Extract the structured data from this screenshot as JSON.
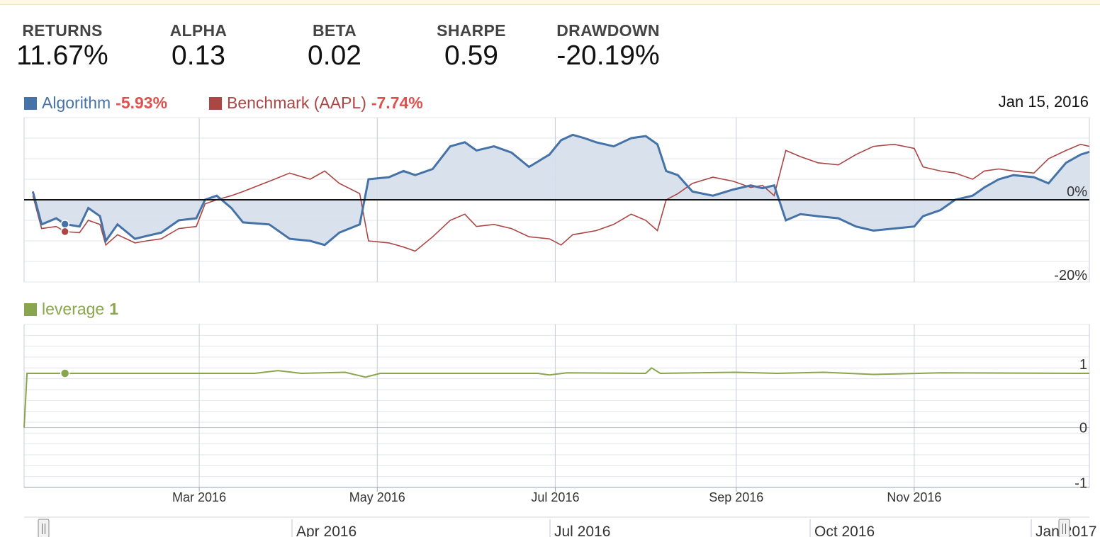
{
  "stats": [
    {
      "label": "RETURNS",
      "value": "11.67%"
    },
    {
      "label": "ALPHA",
      "value": "0.13"
    },
    {
      "label": "BETA",
      "value": "0.02"
    },
    {
      "label": "SHARPE",
      "value": "0.59"
    },
    {
      "label": "DRAWDOWN",
      "value": "-20.19%"
    }
  ],
  "legend": {
    "algorithm_name": "Algorithm",
    "algorithm_value": "-5.93%",
    "benchmark_name": "Benchmark (AAPL)",
    "benchmark_value": "-7.74%",
    "leverage_name": "leverage",
    "leverage_value": "1",
    "hover_date": "Jan 15, 2016"
  },
  "colors": {
    "algorithm": "#4572a7",
    "benchmark": "#aa4643",
    "leverage": "#89a54e",
    "negative_value": "#e0504d",
    "area_fill": "#d5deeb"
  },
  "navigator_labels": [
    "Apr 2016",
    "Jul 2016",
    "Oct 2016",
    "Jan 2017"
  ],
  "chart_data": [
    {
      "type": "line",
      "title": "",
      "x_ticks": [
        "Mar 2016",
        "May 2016",
        "Jul 2016",
        "Sep 2016",
        "Nov 2016"
      ],
      "y_ticks": [
        "0%",
        "-20%"
      ],
      "ylim": [
        -20,
        20
      ],
      "grid": true,
      "legend": "top-left",
      "series": [
        {
          "name": "Algorithm",
          "area": true,
          "points": [
            [
              "2016-01-04",
              2.0
            ],
            [
              "2016-01-07",
              -6.0
            ],
            [
              "2016-01-12",
              -4.5
            ],
            [
              "2016-01-15",
              -5.93
            ],
            [
              "2016-01-20",
              -6.5
            ],
            [
              "2016-01-23",
              -2.0
            ],
            [
              "2016-01-27",
              -4.0
            ],
            [
              "2016-01-29",
              -10.0
            ],
            [
              "2016-02-02",
              -6.0
            ],
            [
              "2016-02-08",
              -9.5
            ],
            [
              "2016-02-12",
              -8.8
            ],
            [
              "2016-02-17",
              -8.0
            ],
            [
              "2016-02-23",
              -5.0
            ],
            [
              "2016-02-29",
              -4.5
            ],
            [
              "2016-03-03",
              0.0
            ],
            [
              "2016-03-07",
              1.0
            ],
            [
              "2016-03-12",
              -2.0
            ],
            [
              "2016-03-16",
              -5.5
            ],
            [
              "2016-03-25",
              -6.0
            ],
            [
              "2016-04-01",
              -9.5
            ],
            [
              "2016-04-08",
              -10.0
            ],
            [
              "2016-04-13",
              -11.0
            ],
            [
              "2016-04-18",
              -8.0
            ],
            [
              "2016-04-25",
              -6.0
            ],
            [
              "2016-04-28",
              5.0
            ],
            [
              "2016-05-05",
              5.5
            ],
            [
              "2016-05-10",
              7.0
            ],
            [
              "2016-05-14",
              6.0
            ],
            [
              "2016-05-20",
              7.5
            ],
            [
              "2016-05-26",
              13.0
            ],
            [
              "2016-05-31",
              14.0
            ],
            [
              "2016-06-04",
              12.0
            ],
            [
              "2016-06-10",
              13.0
            ],
            [
              "2016-06-16",
              11.5
            ],
            [
              "2016-06-22",
              8.0
            ],
            [
              "2016-06-29",
              11.0
            ],
            [
              "2016-07-03",
              14.5
            ],
            [
              "2016-07-07",
              15.8
            ],
            [
              "2016-07-11",
              15.0
            ],
            [
              "2016-07-15",
              14.0
            ],
            [
              "2016-07-21",
              13.0
            ],
            [
              "2016-07-27",
              15.0
            ],
            [
              "2016-08-01",
              15.5
            ],
            [
              "2016-08-05",
              13.5
            ],
            [
              "2016-08-08",
              7.0
            ],
            [
              "2016-08-12",
              6.0
            ],
            [
              "2016-08-17",
              2.0
            ],
            [
              "2016-08-24",
              1.0
            ],
            [
              "2016-08-31",
              2.5
            ],
            [
              "2016-09-06",
              3.5
            ],
            [
              "2016-09-10",
              2.8
            ],
            [
              "2016-09-14",
              3.5
            ],
            [
              "2016-09-18",
              -5.0
            ],
            [
              "2016-09-23",
              -3.5
            ],
            [
              "2016-09-29",
              -4.0
            ],
            [
              "2016-10-06",
              -4.5
            ],
            [
              "2016-10-12",
              -6.5
            ],
            [
              "2016-10-18",
              -7.5
            ],
            [
              "2016-10-25",
              -7.0
            ],
            [
              "2016-11-01",
              -6.5
            ],
            [
              "2016-11-04",
              -4.0
            ],
            [
              "2016-11-10",
              -2.5
            ],
            [
              "2016-11-15",
              0.0
            ],
            [
              "2016-11-21",
              1.0
            ],
            [
              "2016-11-25",
              3.0
            ],
            [
              "2016-11-30",
              5.0
            ],
            [
              "2016-12-05",
              6.0
            ],
            [
              "2016-12-12",
              5.5
            ],
            [
              "2016-12-17",
              4.0
            ],
            [
              "2016-12-23",
              9.0
            ],
            [
              "2016-12-28",
              11.0
            ],
            [
              "2016-12-31",
              11.67
            ]
          ]
        },
        {
          "name": "Benchmark (AAPL)",
          "area": false,
          "points": [
            [
              "2016-01-04",
              1.0
            ],
            [
              "2016-01-07",
              -7.0
            ],
            [
              "2016-01-12",
              -6.5
            ],
            [
              "2016-01-15",
              -7.74
            ],
            [
              "2016-01-20",
              -8.0
            ],
            [
              "2016-01-23",
              -5.0
            ],
            [
              "2016-01-27",
              -6.0
            ],
            [
              "2016-01-29",
              -11.0
            ],
            [
              "2016-02-02",
              -8.5
            ],
            [
              "2016-02-08",
              -10.5
            ],
            [
              "2016-02-12",
              -10.0
            ],
            [
              "2016-02-17",
              -9.5
            ],
            [
              "2016-02-23",
              -7.0
            ],
            [
              "2016-02-29",
              -6.5
            ],
            [
              "2016-03-03",
              -1.0
            ],
            [
              "2016-03-07",
              0.0
            ],
            [
              "2016-03-12",
              1.0
            ],
            [
              "2016-03-16",
              2.0
            ],
            [
              "2016-03-25",
              4.5
            ],
            [
              "2016-04-01",
              6.5
            ],
            [
              "2016-04-08",
              5.0
            ],
            [
              "2016-04-13",
              7.0
            ],
            [
              "2016-04-18",
              4.0
            ],
            [
              "2016-04-25",
              1.5
            ],
            [
              "2016-04-28",
              -10.0
            ],
            [
              "2016-05-05",
              -10.5
            ],
            [
              "2016-05-10",
              -11.5
            ],
            [
              "2016-05-14",
              -12.5
            ],
            [
              "2016-05-20",
              -9.0
            ],
            [
              "2016-05-26",
              -5.0
            ],
            [
              "2016-05-31",
              -3.5
            ],
            [
              "2016-06-04",
              -6.5
            ],
            [
              "2016-06-10",
              -6.0
            ],
            [
              "2016-06-16",
              -7.0
            ],
            [
              "2016-06-22",
              -9.0
            ],
            [
              "2016-06-29",
              -9.5
            ],
            [
              "2016-07-03",
              -11.0
            ],
            [
              "2016-07-07",
              -8.5
            ],
            [
              "2016-07-11",
              -8.0
            ],
            [
              "2016-07-15",
              -7.5
            ],
            [
              "2016-07-21",
              -6.0
            ],
            [
              "2016-07-27",
              -3.5
            ],
            [
              "2016-08-01",
              -5.0
            ],
            [
              "2016-08-05",
              -7.5
            ],
            [
              "2016-08-08",
              0.0
            ],
            [
              "2016-08-12",
              1.5
            ],
            [
              "2016-08-17",
              4.0
            ],
            [
              "2016-08-24",
              5.5
            ],
            [
              "2016-08-31",
              4.5
            ],
            [
              "2016-09-06",
              3.0
            ],
            [
              "2016-09-10",
              3.5
            ],
            [
              "2016-09-14",
              1.0
            ],
            [
              "2016-09-18",
              12.0
            ],
            [
              "2016-09-23",
              10.5
            ],
            [
              "2016-09-29",
              9.0
            ],
            [
              "2016-10-06",
              8.5
            ],
            [
              "2016-10-12",
              11.0
            ],
            [
              "2016-10-18",
              13.0
            ],
            [
              "2016-10-25",
              13.5
            ],
            [
              "2016-11-01",
              12.5
            ],
            [
              "2016-11-04",
              8.0
            ],
            [
              "2016-11-10",
              7.0
            ],
            [
              "2016-11-15",
              6.5
            ],
            [
              "2016-11-21",
              5.0
            ],
            [
              "2016-11-25",
              7.0
            ],
            [
              "2016-11-30",
              7.5
            ],
            [
              "2016-12-05",
              7.0
            ],
            [
              "2016-12-12",
              6.5
            ],
            [
              "2016-12-17",
              10.0
            ],
            [
              "2016-12-23",
              12.0
            ],
            [
              "2016-12-28",
              13.5
            ],
            [
              "2016-12-31",
              13.0
            ]
          ]
        }
      ]
    },
    {
      "type": "line",
      "title": "",
      "y_ticks": [
        "1",
        "0",
        "-1"
      ],
      "ylim": [
        -1.1,
        1.9
      ],
      "grid": true,
      "legend": "top-left",
      "series": [
        {
          "name": "leverage",
          "points": [
            [
              "2016-01-01",
              0.0
            ],
            [
              "2016-01-02",
              1.0
            ],
            [
              "2016-03-20",
              1.0
            ],
            [
              "2016-03-28",
              1.05
            ],
            [
              "2016-04-05",
              1.0
            ],
            [
              "2016-04-20",
              1.02
            ],
            [
              "2016-04-27",
              0.93
            ],
            [
              "2016-05-02",
              1.0
            ],
            [
              "2016-06-25",
              1.0
            ],
            [
              "2016-06-29",
              0.97
            ],
            [
              "2016-07-05",
              1.01
            ],
            [
              "2016-08-01",
              1.0
            ],
            [
              "2016-08-03",
              1.1
            ],
            [
              "2016-08-06",
              1.0
            ],
            [
              "2016-09-01",
              1.02
            ],
            [
              "2016-09-15",
              1.0
            ],
            [
              "2016-10-01",
              1.02
            ],
            [
              "2016-10-18",
              0.98
            ],
            [
              "2016-11-10",
              1.01
            ],
            [
              "2016-12-31",
              1.0
            ]
          ]
        }
      ]
    }
  ]
}
